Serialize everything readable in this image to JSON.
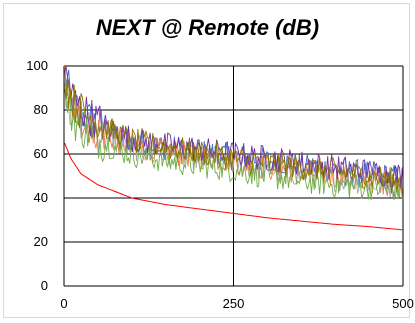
{
  "chart_data": {
    "type": "line",
    "title": "NEXT @ Remote (dB)",
    "xlabel": "",
    "ylabel": "",
    "xlim": [
      0,
      500
    ],
    "ylim": [
      0,
      100
    ],
    "x_ticks": [
      "0",
      "250",
      "500"
    ],
    "y_ticks": [
      "0",
      "20",
      "40",
      "60",
      "80",
      "100"
    ],
    "grid": true,
    "legend": "none",
    "limit_series": {
      "color": "#ff0000",
      "x": [
        1,
        10,
        25,
        50,
        100,
        150,
        200,
        250,
        300,
        350,
        400,
        450,
        500
      ],
      "values": [
        65,
        58,
        51,
        46,
        40,
        37,
        35,
        33,
        31,
        29.5,
        28,
        27,
        25.5
      ]
    },
    "series": [
      {
        "color": "#4472c4",
        "x": [
          1,
          10,
          20,
          40,
          60,
          80,
          100,
          150,
          200,
          250,
          300,
          350,
          400,
          450,
          500
        ],
        "values": [
          98,
          85,
          80,
          75,
          72,
          68,
          66,
          63,
          61,
          59,
          57,
          55,
          53,
          51,
          49
        ]
      },
      {
        "color": "#ed7d31",
        "x": [
          1,
          10,
          20,
          40,
          60,
          80,
          100,
          150,
          200,
          250,
          300,
          350,
          400,
          450,
          500
        ],
        "values": [
          95,
          83,
          78,
          72,
          69,
          66,
          64,
          61,
          59,
          57,
          54,
          52,
          50,
          48,
          46
        ]
      },
      {
        "color": "#a5a5a5",
        "x": [
          1,
          10,
          20,
          40,
          60,
          80,
          100,
          150,
          200,
          250,
          300,
          350,
          400,
          450,
          500
        ],
        "values": [
          92,
          80,
          76,
          71,
          68,
          65,
          63,
          60,
          58,
          56,
          53,
          51,
          49,
          47,
          45
        ]
      },
      {
        "color": "#70ad47",
        "x": [
          1,
          10,
          20,
          40,
          60,
          80,
          100,
          150,
          200,
          250,
          300,
          350,
          400,
          450,
          500
        ],
        "values": [
          90,
          78,
          73,
          68,
          65,
          62,
          60,
          57,
          55,
          53,
          50,
          48,
          46,
          45,
          44
        ]
      },
      {
        "color": "#7030a0",
        "x": [
          1,
          10,
          20,
          40,
          60,
          80,
          100,
          150,
          200,
          250,
          300,
          350,
          400,
          450,
          500
        ],
        "values": [
          99,
          88,
          82,
          77,
          73,
          70,
          67,
          64,
          62,
          60,
          58,
          56,
          54,
          52,
          50
        ]
      },
      {
        "color": "#8b7500",
        "x": [
          1,
          10,
          20,
          40,
          60,
          80,
          100,
          150,
          200,
          250,
          300,
          350,
          400,
          450,
          500
        ],
        "values": [
          96,
          86,
          81,
          76,
          72,
          69,
          66,
          63,
          61,
          58,
          56,
          54,
          52,
          50,
          47
        ]
      }
    ]
  }
}
